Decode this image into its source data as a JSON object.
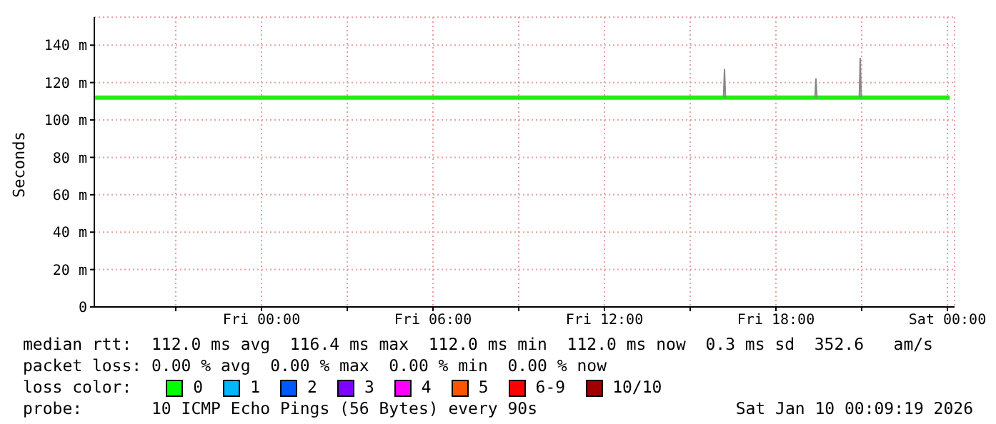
{
  "chart_data": {
    "type": "line",
    "ylabel": "Seconds",
    "xlim": [
      "2026-01-08T18:09",
      "2026-01-10T00:15"
    ],
    "xticks": [
      {
        "value": "2026-01-08T21:00",
        "label": null
      },
      {
        "value": "2026-01-09T00:00",
        "label": "Fri 00:00"
      },
      {
        "value": "2026-01-09T03:00",
        "label": null
      },
      {
        "value": "2026-01-09T06:00",
        "label": "Fri 06:00"
      },
      {
        "value": "2026-01-09T09:00",
        "label": null
      },
      {
        "value": "2026-01-09T12:00",
        "label": "Fri 12:00"
      },
      {
        "value": "2026-01-09T15:00",
        "label": null
      },
      {
        "value": "2026-01-09T18:00",
        "label": "Fri 18:00"
      },
      {
        "value": "2026-01-09T21:00",
        "label": null
      },
      {
        "value": "2026-01-10T00:00",
        "label": "Sat 00:00"
      }
    ],
    "ylim": [
      0,
      155
    ],
    "yticks": [
      {
        "value": 0,
        "label": "0"
      },
      {
        "value": 20,
        "label": "20 m"
      },
      {
        "value": 40,
        "label": "40 m"
      },
      {
        "value": 60,
        "label": "60 m"
      },
      {
        "value": 80,
        "label": "80 m"
      },
      {
        "value": 100,
        "label": "100 m"
      },
      {
        "value": 120,
        "label": "120 m"
      },
      {
        "value": 140,
        "label": "140 m"
      }
    ],
    "grid": true,
    "marker": "none",
    "line_style": "solid",
    "series": [
      {
        "color": "#22ee11",
        "x": [
          "2026-01-08T18:09",
          "2026-01-10T00:05"
        ],
        "values": [
          112,
          112
        ]
      },
      {
        "color": "#888888",
        "x": [
          "2026-01-09T16:10",
          "2026-01-09T16:12",
          "2026-01-09T16:14",
          "2026-01-09T18:00",
          "2026-01-09T19:22",
          "2026-01-09T19:24",
          "2026-01-09T19:26",
          "2026-01-09T20:00",
          "2026-01-09T20:55",
          "2026-01-09T20:57",
          "2026-01-09T20:59"
        ],
        "values": [
          112,
          127,
          112,
          null,
          112,
          122,
          112,
          null,
          112,
          133,
          112
        ]
      }
    ],
    "annotations": [
      "median rtt:  112.0 ms avg  116.4 ms max  112.0 ms min  112.0 ms now  0.3 ms sd  352.6   am/s",
      "packet loss: 0.00 % avg  0.00 % max  0.00 % min  0.00 % now",
      "loss color:",
      "0",
      "1",
      "2",
      "3",
      "4",
      "5",
      "6-9",
      "10/10",
      "probe:       10 ICMP Echo Pings (56 Bytes) every 90s",
      "Sat Jan 10 00:09:19 2026"
    ]
  }
}
